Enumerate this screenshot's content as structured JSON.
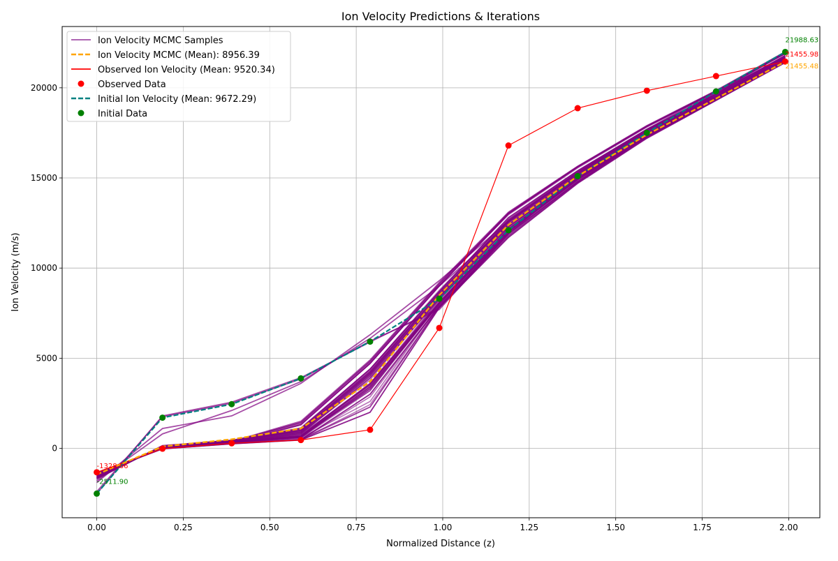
{
  "chart_data": {
    "type": "line",
    "title": "Ion Velocity Predictions & Iterations",
    "xlabel": "Normalized Distance (z)",
    "ylabel": "Ion Velocity (m/s)",
    "xlim": [
      -0.1,
      2.09
    ],
    "ylim": [
      -3850,
      23400
    ],
    "xticks": [
      0.0,
      0.25,
      0.5,
      0.75,
      1.0,
      1.25,
      1.5,
      1.75,
      2.0
    ],
    "xtick_labels": [
      "0.00",
      "0.25",
      "0.50",
      "0.75",
      "1.00",
      "1.25",
      "1.50",
      "1.75",
      "2.00"
    ],
    "yticks": [
      0,
      5000,
      10000,
      15000,
      20000
    ],
    "ytick_labels": [
      "0",
      "5000",
      "10000",
      "15000",
      "20000"
    ],
    "grid": true,
    "legend_position": "top-left",
    "x": [
      0.0,
      0.19,
      0.39,
      0.59,
      0.79,
      0.99,
      1.19,
      1.39,
      1.59,
      1.79,
      1.99
    ],
    "legend": [
      {
        "label": "Ion Velocity MCMC Samples",
        "kind": "line",
        "color": "#a34fa8"
      },
      {
        "label": "Ion Velocity MCMC (Mean): 8956.39",
        "kind": "dashed",
        "color": "#ffa500"
      },
      {
        "label": "Observed Ion Velocity (Mean: 9520.34)",
        "kind": "line",
        "color": "#ff0000"
      },
      {
        "label": "Observed Data",
        "kind": "marker",
        "color": "#ff0000"
      },
      {
        "label": "Initial Ion Velocity (Mean: 9672.29)",
        "kind": "dashed",
        "color": "#008080"
      },
      {
        "label": "Initial Data",
        "kind": "marker",
        "color": "#008000"
      }
    ],
    "series": [
      {
        "name": "Observed Ion Velocity",
        "color": "#ff0000",
        "values": [
          -1328.66,
          -20,
          280,
          460,
          1030,
          6680,
          16800,
          18870,
          19840,
          20650,
          21455.98
        ]
      },
      {
        "name": "Initial Ion Velocity",
        "color": "#008080",
        "values": [
          -2511.9,
          1700,
          2450,
          3880,
          5920,
          8300,
          12100,
          15100,
          17500,
          19800,
          21988.63
        ]
      },
      {
        "name": "Ion Velocity MCMC (Mean)",
        "color": "#ffa500",
        "values": [
          -1450,
          100,
          500,
          1100,
          3700,
          8500,
          12400,
          15100,
          17400,
          19400,
          21455.48
        ]
      }
    ],
    "mcmc_samples": [
      [
        -2511.9,
        1800,
        2560,
        3920,
        5900,
        7800,
        12000,
        15200,
        17600,
        19700,
        21988.63
      ],
      [
        -2400,
        1750,
        2500,
        3850,
        5950,
        7700,
        11900,
        15100,
        17500,
        19650,
        21950
      ],
      [
        -1900,
        1100,
        1800,
        3600,
        6300,
        9300,
        12600,
        15300,
        17700,
        19800,
        21900
      ],
      [
        -1800,
        800,
        2100,
        3700,
        6100,
        9000,
        12400,
        15150,
        17550,
        19750,
        21700
      ],
      [
        -1400,
        -30,
        250,
        460,
        2000,
        7800,
        11700,
        14700,
        17200,
        19300,
        21400
      ],
      [
        -1350,
        -20,
        270,
        480,
        3000,
        7900,
        11900,
        14800,
        17300,
        19350,
        21450
      ],
      [
        -1500,
        50,
        350,
        700,
        3600,
        8100,
        12200,
        15000,
        17400,
        19400,
        21500
      ],
      [
        -1600,
        100,
        400,
        900,
        4100,
        8400,
        12500,
        15200,
        17550,
        19500,
        21600
      ],
      [
        -1700,
        150,
        450,
        1100,
        4400,
        8700,
        12800,
        15400,
        17700,
        19650,
        21800
      ],
      [
        -1450,
        0,
        300,
        1300,
        4700,
        9000,
        13000,
        15600,
        17850,
        19800,
        21900
      ],
      [
        -1550,
        80,
        380,
        1500,
        4900,
        9200,
        13100,
        15650,
        17900,
        19850,
        22000
      ],
      [
        -1420,
        20,
        320,
        600,
        3300,
        8000,
        12000,
        14900,
        17300,
        19380,
        21480
      ],
      [
        -1480,
        40,
        340,
        800,
        3900,
        8300,
        12300,
        15050,
        17450,
        19450,
        21550
      ],
      [
        -1650,
        120,
        420,
        1000,
        4200,
        8600,
        12600,
        15300,
        17600,
        19550,
        21700
      ]
    ],
    "annotations": [
      {
        "text": "-1328.66",
        "x": 0.0,
        "y": -1328.66,
        "color": "#ff0000"
      },
      {
        "text": "-2511.90",
        "x": 0.0,
        "y": -2511.9,
        "color": "#008000"
      },
      {
        "text": "21988.63",
        "x": 1.99,
        "y": 21988.63,
        "color": "#008000"
      },
      {
        "text": "21455.98",
        "x": 1.99,
        "y": 21455.98,
        "color": "#ff0000"
      },
      {
        "text": "21455.48",
        "x": 1.99,
        "y": 21455.48,
        "color": "#ffa500"
      }
    ]
  }
}
